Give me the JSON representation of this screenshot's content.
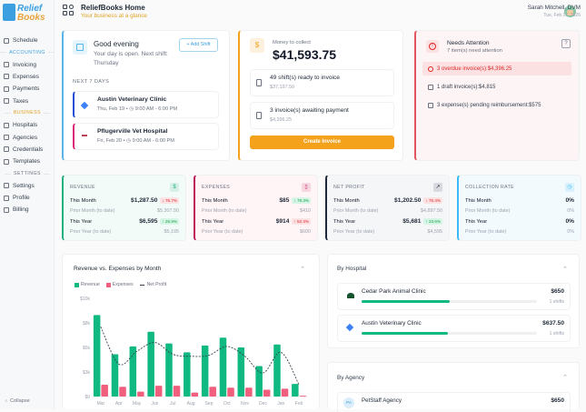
{
  "app": {
    "logo_line1": "Relief",
    "logo_line2": "Books",
    "title": "ReliefBooks Home",
    "subtitle": "Your business at a glance"
  },
  "user": {
    "name": "Sarah Mitchell, DVM",
    "date": "Tue, Feb 17, 2026"
  },
  "sidebar": {
    "items": [
      {
        "label": "Schedule",
        "icon": "calendar-icon"
      },
      {
        "section": "ACCOUNTING",
        "color": "#3b9fe0"
      },
      {
        "label": "Invoicing",
        "icon": "document-icon"
      },
      {
        "label": "Expenses",
        "icon": "receipt-icon"
      },
      {
        "label": "Payments",
        "icon": "bank-icon"
      },
      {
        "label": "Taxes",
        "icon": "gear-icon"
      },
      {
        "section": "BUSINESS",
        "color": "#e0a020"
      },
      {
        "label": "Hospitals",
        "icon": "hospital-icon"
      },
      {
        "label": "Agencies",
        "icon": "briefcase-icon"
      },
      {
        "label": "Credentials",
        "icon": "check-circle-icon"
      },
      {
        "label": "Templates",
        "icon": "template-icon"
      },
      {
        "section": "SETTINGS",
        "color": "#6b7280"
      },
      {
        "label": "Settings",
        "icon": "settings-icon"
      },
      {
        "label": "Profile",
        "icon": "user-icon"
      },
      {
        "label": "Billing",
        "icon": "card-icon"
      }
    ],
    "collapse": "Collapse"
  },
  "greeting": {
    "title": "Good evening",
    "message": "Your day is open. Next shift: Thursday",
    "add_shift": "+ Add Shift",
    "next_label": "NEXT 7 DAYS",
    "shifts": [
      {
        "clinic": "Austin Veterinary Clinic",
        "date": "Thu, Feb 19",
        "time": "9:00 AM - 6:00 PM",
        "color": "#1d4ed8"
      },
      {
        "clinic": "Pflugerville Vet Hospital",
        "date": "Fri, Feb 20",
        "time": "9:00 AM - 6:00 PM",
        "color": "#db2777"
      }
    ]
  },
  "collect": {
    "label": "Money to collect",
    "amount": "$41,593.75",
    "items": [
      {
        "title": "49 shift(s) ready to invoice",
        "amount": "$37,197.50"
      },
      {
        "title": "3 invoice(s) awaiting payment",
        "amount": "$4,396.25"
      }
    ],
    "button": "Create Invoice"
  },
  "attention": {
    "title": "Needs Attention",
    "subtitle": "7 item(s) need attention",
    "help": "?",
    "items": [
      {
        "text": "3 overdue invoice(s)",
        "amount": "$4,396.25",
        "highlight": true
      },
      {
        "text": "1 draft invoice(s)",
        "amount": "$4,815",
        "highlight": false
      },
      {
        "text": "3 expense(s) pending reimbursement",
        "amount": "$575",
        "highlight": false
      }
    ]
  },
  "stats": [
    {
      "title": "REVENUE",
      "icon": "$",
      "accent": "#22b07d",
      "bg": "#f2fbf7",
      "rows": [
        {
          "label": "This Month",
          "value": "$1,287.50",
          "badge": "↓ 75.7%",
          "dir": "down"
        },
        {
          "label": "Prior Month (to date)",
          "value": "$5,307.50"
        },
        {
          "label": "This Year",
          "value": "$6,595",
          "badge": "↑ 26.9%",
          "dir": "up"
        },
        {
          "label": "Prior Year (to date)",
          "value": "$5,195"
        }
      ]
    },
    {
      "title": "EXPENSES",
      "icon": "▯",
      "accent": "#be185d",
      "bg": "#fff4f6",
      "rows": [
        {
          "label": "This Month",
          "value": "$85",
          "badge": "↓ 79.3%",
          "dir": "up"
        },
        {
          "label": "Prior Month (to date)",
          "value": "$410"
        },
        {
          "label": "This Year",
          "value": "$914",
          "badge": "↑ 52.3%",
          "dir": "down"
        },
        {
          "label": "Prior Year (to date)",
          "value": "$600"
        }
      ]
    },
    {
      "title": "NET PROFIT",
      "icon": "↗",
      "accent": "#1e293b",
      "bg": "#f5f6f8",
      "rows": [
        {
          "label": "This Month",
          "value": "$1,202.50",
          "badge": "↓ 75.4%",
          "dir": "down"
        },
        {
          "label": "Prior Month (to date)",
          "value": "$4,897.50"
        },
        {
          "label": "This Year",
          "value": "$5,681",
          "badge": "↑ 23.6%",
          "dir": "up"
        },
        {
          "label": "Prior Year (to date)",
          "value": "$4,595"
        }
      ]
    },
    {
      "title": "COLLECTION RATE",
      "icon": "◷",
      "accent": "#38bdf8",
      "bg": "#f3fafe",
      "rows": [
        {
          "label": "This Month",
          "value": "0%"
        },
        {
          "label": "Prior Month (to date)",
          "value": "0%"
        },
        {
          "label": "This Year",
          "value": "0%"
        },
        {
          "label": "Prior Year (to date)",
          "value": "0%"
        }
      ]
    }
  ],
  "chart_data": {
    "type": "bar",
    "title": "Revenue vs. Expenses by Month",
    "categories": [
      "Mar",
      "Apr",
      "May",
      "Jun",
      "Jul",
      "Aug",
      "Sep",
      "Oct",
      "Nov",
      "Dec",
      "Jan",
      "Feb"
    ],
    "series": [
      {
        "name": "Revenue",
        "type": "bar",
        "color": "#10b981",
        "values": [
          8300,
          4300,
          5100,
          6600,
          5400,
          4500,
          5200,
          6000,
          5000,
          3100,
          5300,
          1287.5
        ]
      },
      {
        "name": "Expenses",
        "type": "bar",
        "color": "#f0607e",
        "values": [
          1200,
          1000,
          500,
          1100,
          1100,
          400,
          1000,
          900,
          900,
          700,
          800,
          85
        ]
      },
      {
        "name": "Net Profit",
        "type": "line",
        "style": "dashed",
        "color": "#374151",
        "values": [
          7100,
          3300,
          4600,
          5500,
          4300,
          4100,
          4200,
          5100,
          4100,
          2400,
          4500,
          1202.5
        ]
      }
    ],
    "yticks": [
      "$0",
      "$3k",
      "$5k",
      "$8k",
      "$10k"
    ],
    "ylim": [
      0,
      10000
    ],
    "legend": "top-left",
    "grid": false
  },
  "by_hospital": {
    "title": "By Hospital",
    "items": [
      {
        "name": "Cedar Park Animal Clinic",
        "amount": "$650",
        "shifts": "1 shifts",
        "share": 0.5
      },
      {
        "name": "Austin Veterinary Clinic",
        "amount": "$637.50",
        "shifts": "1 shifts",
        "share": 0.49
      }
    ]
  },
  "by_agency": {
    "title": "By Agency",
    "items": [
      {
        "initials": "PA",
        "name": "PetStaff Agency",
        "amount": "$650"
      }
    ]
  }
}
